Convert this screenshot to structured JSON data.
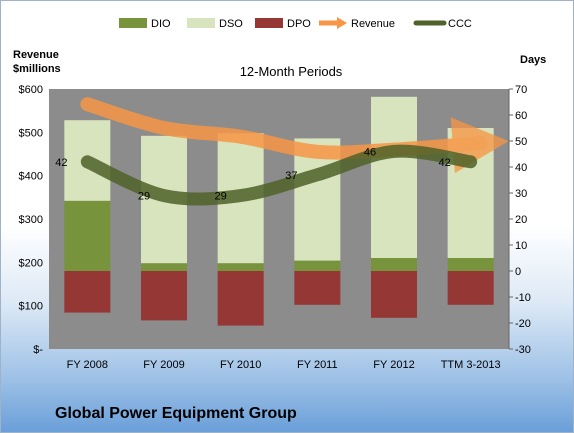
{
  "company_name": "Global Power Equipment Group",
  "colors": {
    "dio": "#77933c",
    "dso": "#d7e4bd",
    "dpo": "#953735",
    "revenue": "#f79646",
    "ccc": "#4f6228",
    "plot_bg": "#8c8c8c"
  },
  "chart_data": {
    "type": "bar",
    "title": "12-Month Periods",
    "categories": [
      "FY 2008",
      "FY 2009",
      "FY 2010",
      "FY 2011",
      "FY 2012",
      "TTM 3-2013"
    ],
    "y_left": {
      "label_line1": "Revenue",
      "label_line2": "$millions",
      "range": [
        0,
        600
      ],
      "ticks": [
        0,
        100,
        200,
        300,
        400,
        500,
        600
      ],
      "tick_labels": [
        "$-",
        "$100",
        "$200",
        "$300",
        "$400",
        "$500",
        "$600"
      ]
    },
    "y_right": {
      "label": "Days",
      "range": [
        -30,
        70
      ],
      "ticks": [
        -30,
        -20,
        -10,
        0,
        10,
        20,
        30,
        40,
        50,
        60,
        70
      ],
      "tick_labels": [
        "-30",
        "-20",
        "-10",
        "0",
        "10",
        "20",
        "30",
        "40",
        "50",
        "60",
        "70"
      ]
    },
    "legend_position": "top",
    "series": [
      {
        "name": "DIO",
        "type": "stacked-bar",
        "axis": "right",
        "values": [
          27,
          3,
          3,
          4,
          5,
          5
        ]
      },
      {
        "name": "DSO",
        "type": "stacked-bar",
        "axis": "right",
        "values": [
          31,
          49,
          50,
          47,
          62,
          50
        ]
      },
      {
        "name": "DPO",
        "type": "negative-bar",
        "axis": "right",
        "values": [
          -16,
          -19,
          -21,
          -13,
          -18,
          -13
        ]
      },
      {
        "name": "Revenue",
        "type": "arrow-line",
        "axis": "left",
        "values": [
          565,
          510,
          490,
          455,
          460,
          475
        ]
      },
      {
        "name": "CCC",
        "type": "line",
        "axis": "right",
        "values": [
          42,
          29,
          29,
          37,
          46,
          42
        ],
        "data_labels": [
          "42",
          "29",
          "29",
          "37",
          "46",
          "42"
        ]
      }
    ]
  }
}
